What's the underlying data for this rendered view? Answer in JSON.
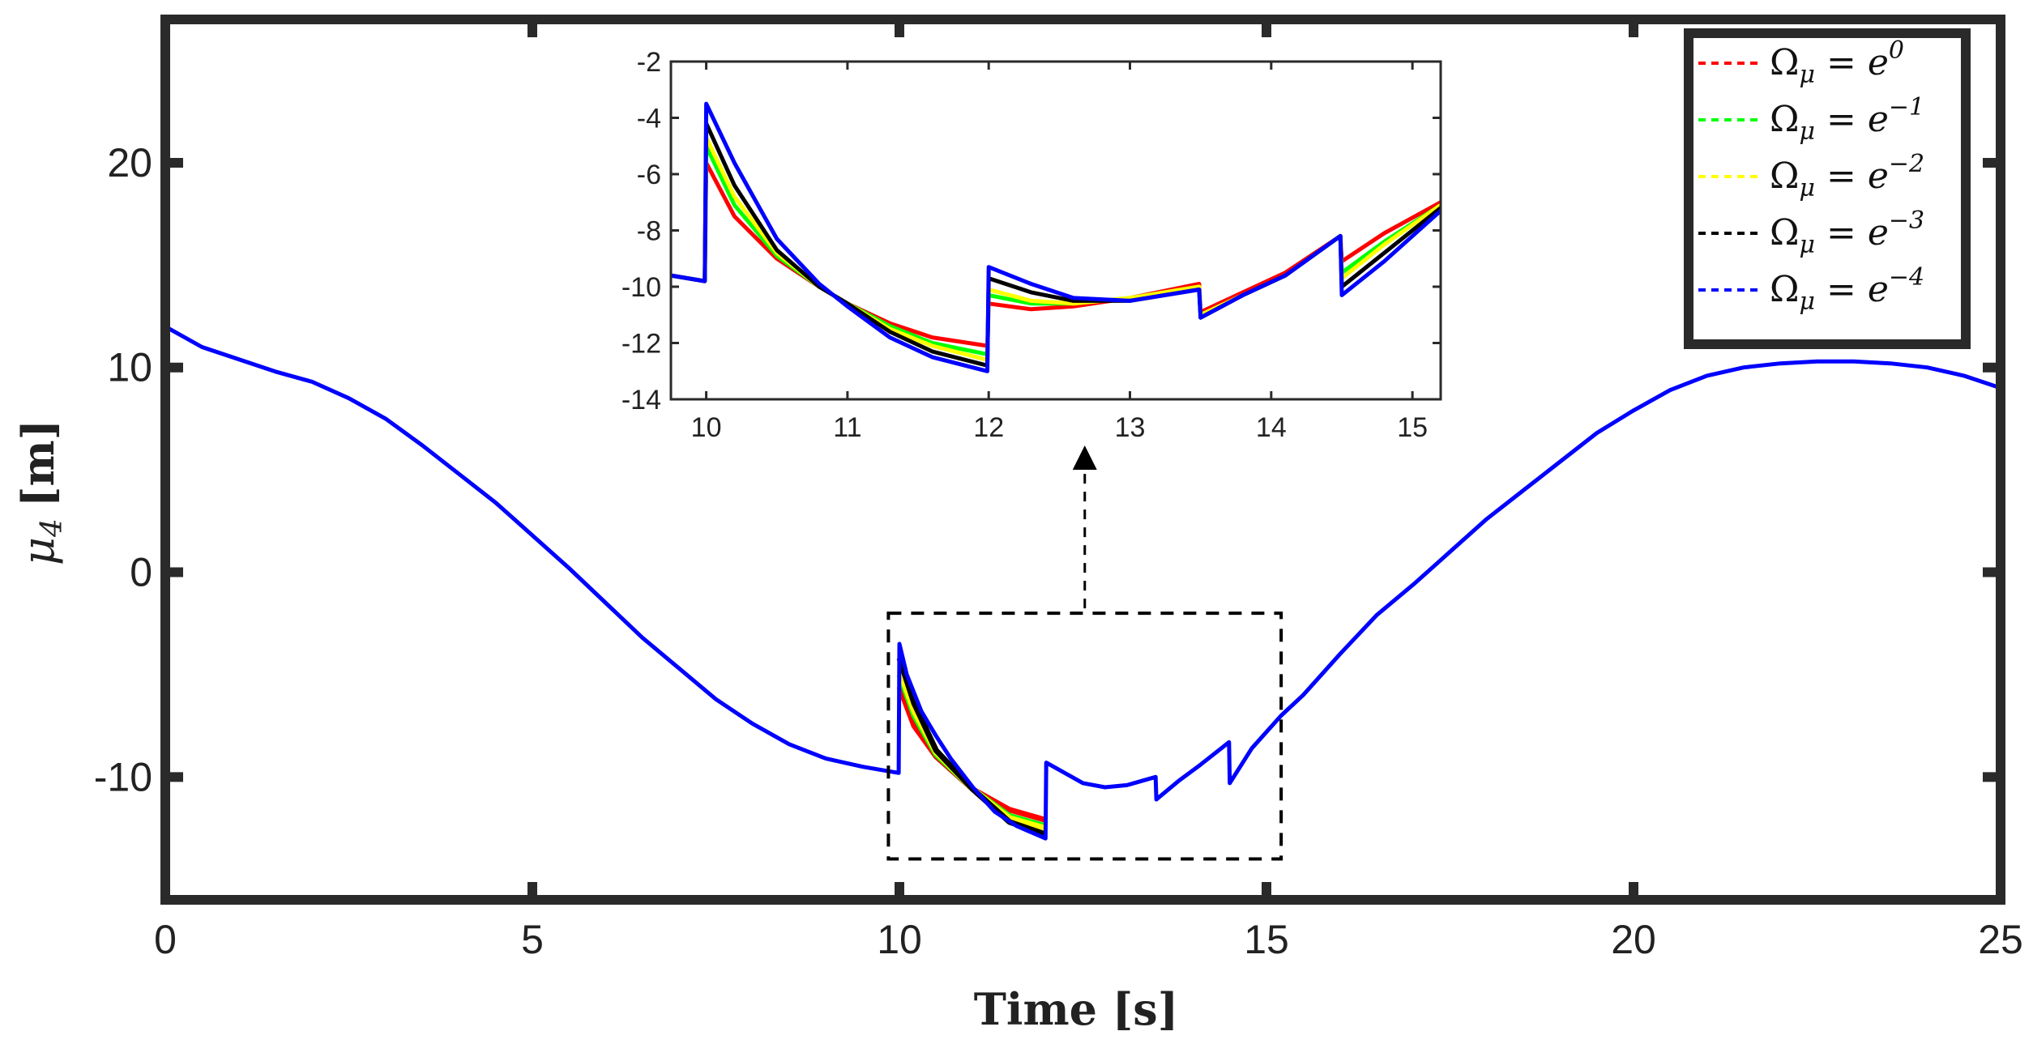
{
  "chart_data": [
    {
      "id": "main",
      "type": "line",
      "title": "",
      "xlabel": "Time [s]",
      "ylabel": {
        "symbol": "μ",
        "subscript": "4",
        "unit": "[m]"
      },
      "xlim": [
        0,
        25
      ],
      "ylim": [
        -16,
        27
      ],
      "xticks": [
        0,
        5,
        10,
        15,
        20,
        25
      ],
      "xtick_labels": [
        "0",
        "5",
        "10",
        "15",
        "20",
        "25"
      ],
      "yticks": [
        -10,
        0,
        10,
        20
      ],
      "ytick_labels": [
        "-10",
        "0",
        "10",
        "20"
      ],
      "grid": false,
      "legend_position": "top-right",
      "zoom_box": {
        "x": [
          9.85,
          15.2
        ],
        "y": [
          -14,
          -2
        ]
      },
      "series": [
        {
          "name": "Ω_μ = e^0",
          "color": "#ff0000",
          "x": [
            10,
            10.2,
            10.5,
            11,
            11.5,
            11.99
          ],
          "y": [
            -5.6,
            -7.5,
            -9.0,
            -10.6,
            -11.6,
            -12.1
          ]
        },
        {
          "name": "Ω_μ = e^-1",
          "color": "#00ff00",
          "x": [
            10,
            10.2,
            10.5,
            11,
            11.5,
            11.99
          ],
          "y": [
            -5.0,
            -7.0,
            -8.9,
            -10.6,
            -11.9,
            -12.4
          ]
        },
        {
          "name": "Ω_μ = e^-2",
          "color": "#ffff00",
          "x": [
            10,
            10.2,
            10.5,
            11,
            11.5,
            11.99
          ],
          "y": [
            -4.8,
            -6.8,
            -8.8,
            -10.6,
            -12.0,
            -12.5
          ]
        },
        {
          "name": "Ω_μ = e^-3",
          "color": "#000000",
          "x": [
            10,
            10.2,
            10.5,
            11,
            11.5,
            11.99
          ],
          "y": [
            -4.2,
            -6.4,
            -8.7,
            -10.6,
            -12.2,
            -12.8
          ]
        },
        {
          "name": "Ω_μ = e^-4",
          "color": "#0000ff",
          "x": [
            0,
            0.5,
            1,
            1.5,
            2,
            2.5,
            3,
            3.5,
            4,
            4.5,
            5,
            5.5,
            6,
            6.5,
            7,
            7.5,
            8,
            8.5,
            9,
            9.5,
            9.99,
            10,
            10.1,
            10.3,
            10.5,
            10.7,
            11,
            11.3,
            11.6,
            11.99,
            12,
            12.2,
            12.5,
            12.8,
            13.1,
            13.49,
            13.5,
            13.8,
            14.1,
            14.49,
            14.5,
            14.8,
            15,
            15.2,
            15.5,
            16,
            16.5,
            17,
            17.5,
            18,
            18.5,
            19,
            19.5,
            20,
            20.5,
            21,
            21.5,
            22,
            22.5,
            23,
            23.5,
            24,
            24.5,
            25
          ],
          "y": [
            12,
            11,
            10.4,
            9.8,
            9.3,
            8.5,
            7.5,
            6.2,
            4.8,
            3.4,
            1.8,
            0.2,
            -1.5,
            -3.2,
            -4.7,
            -6.2,
            -7.4,
            -8.4,
            -9.1,
            -9.5,
            -9.8,
            -3.5,
            -5.0,
            -6.8,
            -8.0,
            -9.1,
            -10.5,
            -11.7,
            -12.4,
            -13.0,
            -9.3,
            -9.7,
            -10.3,
            -10.5,
            -10.4,
            -10.0,
            -11.1,
            -10.2,
            -9.4,
            -8.3,
            -10.3,
            -8.6,
            -7.8,
            -7.0,
            -6.0,
            -4.0,
            -2.1,
            -0.6,
            1.0,
            2.6,
            4.0,
            5.4,
            6.8,
            7.9,
            8.9,
            9.6,
            10.0,
            10.2,
            10.3,
            10.3,
            10.2,
            10.0,
            9.6,
            9.0
          ]
        }
      ]
    },
    {
      "id": "inset",
      "type": "line",
      "title": "",
      "xlabel": "",
      "ylabel": "",
      "xlim": [
        9.75,
        15.2
      ],
      "ylim": [
        -14,
        -2
      ],
      "xticks": [
        10,
        11,
        12,
        13,
        14,
        15
      ],
      "xtick_labels": [
        "10",
        "11",
        "12",
        "13",
        "14",
        "15"
      ],
      "yticks": [
        -14,
        -12,
        -10,
        -8,
        -6,
        -4,
        -2
      ],
      "ytick_labels": [
        "-14",
        "-12",
        "-10",
        "-8",
        "-6",
        "-4",
        "-2"
      ],
      "grid": false,
      "series": [
        {
          "name": "Ω_μ = e^0",
          "color": "#ff0000",
          "x": [
            9.75,
            9.99,
            10,
            10.2,
            10.5,
            10.8,
            11,
            11.3,
            11.6,
            11.99,
            12,
            12.3,
            12.6,
            13,
            13.49,
            13.5,
            13.8,
            14.1,
            14.49,
            14.5,
            14.8,
            15.2
          ],
          "y": [
            -9.6,
            -9.8,
            -5.6,
            -7.5,
            -9.0,
            -10.0,
            -10.6,
            -11.3,
            -11.8,
            -12.1,
            -10.6,
            -10.8,
            -10.7,
            -10.4,
            -9.9,
            -10.9,
            -10.2,
            -9.5,
            -8.2,
            -9.1,
            -8.1,
            -7.0
          ]
        },
        {
          "name": "Ω_μ = e^-1",
          "color": "#00ff00",
          "x": [
            9.75,
            9.99,
            10,
            10.2,
            10.5,
            10.8,
            11,
            11.3,
            11.6,
            11.99,
            12,
            12.3,
            12.6,
            13,
            13.49,
            13.5,
            13.8,
            14.1,
            14.49,
            14.5,
            14.8,
            15.2
          ],
          "y": [
            -9.6,
            -9.8,
            -5.0,
            -7.1,
            -8.9,
            -10.0,
            -10.6,
            -11.4,
            -12.0,
            -12.4,
            -10.3,
            -10.6,
            -10.6,
            -10.4,
            -10.0,
            -11.0,
            -10.3,
            -9.6,
            -8.2,
            -9.5,
            -8.4,
            -7.1
          ]
        },
        {
          "name": "Ω_μ = e^-2",
          "color": "#ffff00",
          "x": [
            9.75,
            9.99,
            10,
            10.2,
            10.5,
            10.8,
            11,
            11.3,
            11.6,
            11.99,
            12,
            12.3,
            12.6,
            13,
            13.49,
            13.5,
            13.8,
            14.1,
            14.49,
            14.5,
            14.8,
            15.2
          ],
          "y": [
            -9.6,
            -9.8,
            -4.7,
            -6.8,
            -8.8,
            -10.0,
            -10.6,
            -11.5,
            -12.1,
            -12.6,
            -10.1,
            -10.5,
            -10.6,
            -10.4,
            -10.0,
            -11.0,
            -10.3,
            -9.6,
            -8.2,
            -9.7,
            -8.5,
            -7.1
          ]
        },
        {
          "name": "Ω_μ = e^-3",
          "color": "#000000",
          "x": [
            9.75,
            9.99,
            10,
            10.2,
            10.5,
            10.8,
            11,
            11.3,
            11.6,
            11.99,
            12,
            12.3,
            12.6,
            13,
            13.49,
            13.5,
            13.8,
            14.1,
            14.49,
            14.5,
            14.8,
            15.2
          ],
          "y": [
            -9.6,
            -9.8,
            -4.2,
            -6.4,
            -8.7,
            -10.0,
            -10.6,
            -11.6,
            -12.3,
            -12.8,
            -9.7,
            -10.2,
            -10.5,
            -10.5,
            -10.1,
            -11.1,
            -10.3,
            -9.6,
            -8.2,
            -10.0,
            -8.8,
            -7.2
          ]
        },
        {
          "name": "Ω_μ = e^-4",
          "color": "#0000ff",
          "x": [
            9.75,
            9.99,
            10,
            10.2,
            10.5,
            10.8,
            11,
            11.3,
            11.6,
            11.99,
            12,
            12.3,
            12.6,
            13,
            13.49,
            13.5,
            13.8,
            14.1,
            14.49,
            14.5,
            14.8,
            15.2
          ],
          "y": [
            -9.6,
            -9.8,
            -3.5,
            -5.6,
            -8.3,
            -9.9,
            -10.7,
            -11.8,
            -12.5,
            -13.0,
            -9.3,
            -9.9,
            -10.4,
            -10.5,
            -10.1,
            -11.1,
            -10.3,
            -9.6,
            -8.2,
            -10.3,
            -9.1,
            -7.3
          ]
        }
      ]
    }
  ],
  "legend": {
    "items": [
      {
        "lhs": "Ω",
        "sub": "μ",
        "op": "=",
        "base": "e",
        "exp": "0",
        "color": "#ff0000"
      },
      {
        "lhs": "Ω",
        "sub": "μ",
        "op": "=",
        "base": "e",
        "exp": "−1",
        "color": "#00ff00"
      },
      {
        "lhs": "Ω",
        "sub": "μ",
        "op": "=",
        "base": "e",
        "exp": "−2",
        "color": "#ffff00"
      },
      {
        "lhs": "Ω",
        "sub": "μ",
        "op": "=",
        "base": "e",
        "exp": "−3",
        "color": "#000000"
      },
      {
        "lhs": "Ω",
        "sub": "μ",
        "op": "=",
        "base": "e",
        "exp": "−4",
        "color": "#0000ff"
      }
    ]
  }
}
